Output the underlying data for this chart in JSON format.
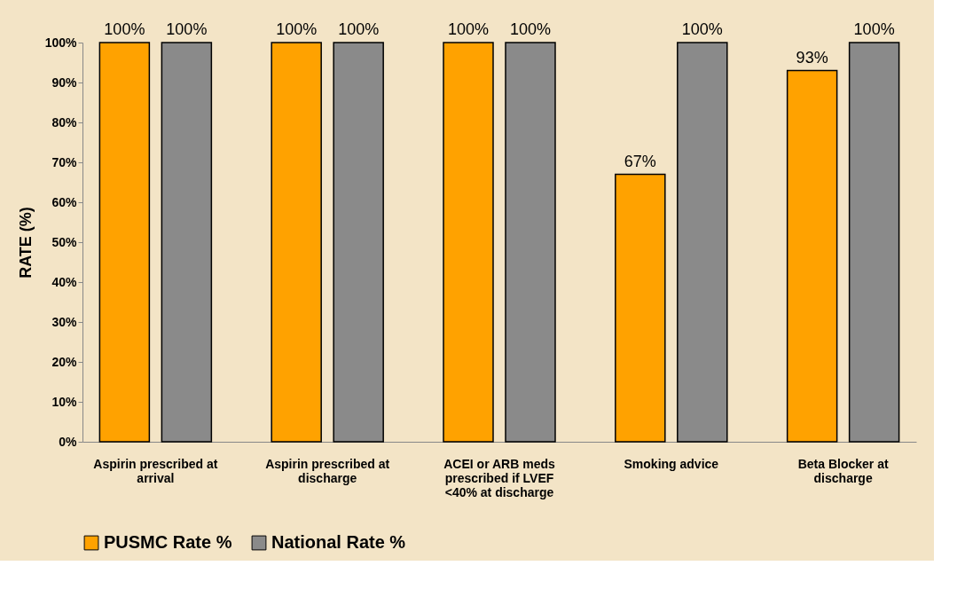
{
  "chart_data": {
    "type": "bar",
    "ylabel": "RATE (%)",
    "categories": [
      "Aspirin prescribed at arrival",
      "Aspirin prescribed at discharge",
      "ACEI or ARB meds prescribed if LVEF <40% at discharge",
      "Smoking advice",
      "Beta Blocker at discharge"
    ],
    "series": [
      {
        "name": "PUSMC Rate %",
        "color": "#ffa200",
        "values": [
          100,
          100,
          100,
          67,
          93
        ],
        "value_labels": [
          "100%",
          "100%",
          "100%",
          "67%",
          "93%"
        ]
      },
      {
        "name": "National Rate %",
        "color": "#8a8a8a",
        "values": [
          100,
          100,
          100,
          100,
          100
        ],
        "value_labels": [
          "100%",
          "100%",
          "100%",
          "100%",
          "100%"
        ]
      }
    ],
    "ylim": [
      0,
      100
    ],
    "yticks": [
      {
        "value": 0,
        "label": "0%"
      },
      {
        "value": 10,
        "label": "10%"
      },
      {
        "value": 20,
        "label": "20%"
      },
      {
        "value": 30,
        "label": "30%"
      },
      {
        "value": 40,
        "label": "40%"
      },
      {
        "value": 50,
        "label": "50%"
      },
      {
        "value": 60,
        "label": "60%"
      },
      {
        "value": 70,
        "label": "70%"
      },
      {
        "value": 80,
        "label": "80%"
      },
      {
        "value": 90,
        "label": "90%"
      },
      {
        "value": 100,
        "label": "100%"
      }
    ],
    "grid": false,
    "legend": "bottom left"
  }
}
